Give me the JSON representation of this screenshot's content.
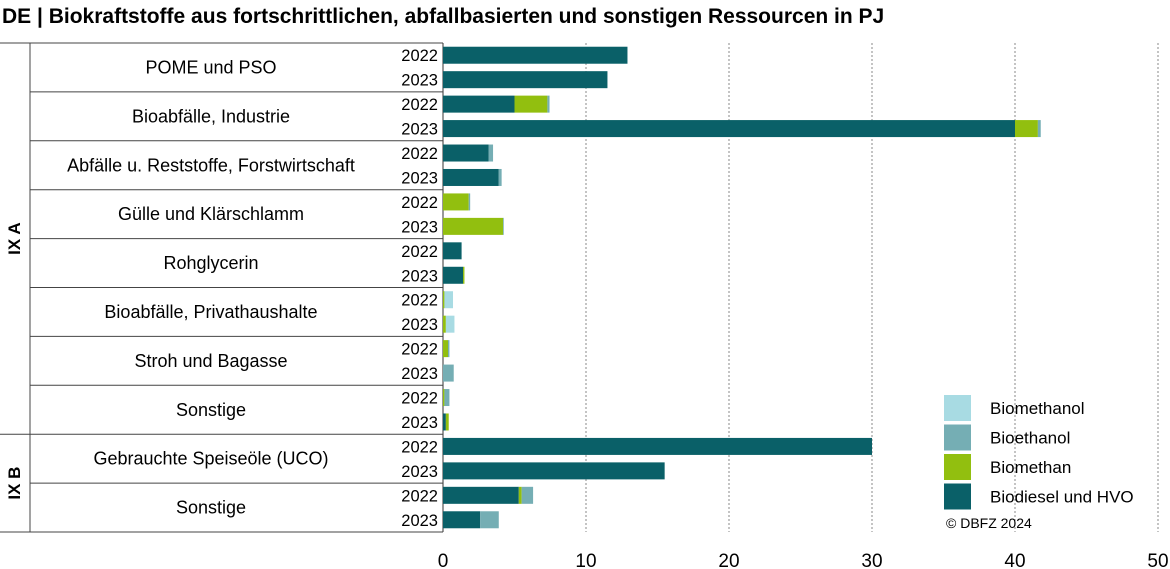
{
  "title": "DE | Biokraftstoffe aus fortschrittlichen, abfallbasierten und sonstigen Ressourcen in PJ",
  "copyright": "© DBFZ 2024",
  "chart_data": {
    "type": "bar",
    "orientation": "horizontal",
    "stacked": true,
    "xlim": [
      0,
      50
    ],
    "x_ticks": [
      0,
      10,
      20,
      30,
      40,
      50
    ],
    "grid": "vertical dotted",
    "legend_position": "bottom-right",
    "groups": [
      {
        "label": "IX A",
        "categories": [
          "POME und PSO",
          "Bioabfälle, Industrie",
          "Abfälle u. Reststoffe, Forstwirtschaft",
          "Gülle und Klärschlamm",
          "Rohglycerin",
          "Bioabfälle, Privathaushalte",
          "Stroh und Bagasse",
          "Sonstige"
        ]
      },
      {
        "label": "IX B",
        "categories": [
          "Gebrauchte Speiseöle (UCO)",
          "Sonstige"
        ]
      }
    ],
    "years": [
      "2022",
      "2023"
    ],
    "series": [
      {
        "name": "Biodiesel und HVO",
        "color": "#0a6068"
      },
      {
        "name": "Biomethan",
        "color": "#92bf0f"
      },
      {
        "name": "Bioethanol",
        "color": "#75aeb4"
      },
      {
        "name": "Biomethanol",
        "color": "#a8dbe3"
      }
    ],
    "rows": [
      {
        "category": "POME und PSO",
        "year": "2022",
        "values": [
          12.9,
          0,
          0,
          0
        ]
      },
      {
        "category": "POME und PSO",
        "year": "2023",
        "values": [
          11.5,
          0,
          0,
          0
        ]
      },
      {
        "category": "Bioabfälle, Industrie",
        "year": "2022",
        "values": [
          5.0,
          2.3,
          0.15,
          0
        ]
      },
      {
        "category": "Bioabfälle, Industrie",
        "year": "2023",
        "values": [
          40.0,
          1.6,
          0.2,
          0
        ]
      },
      {
        "category": "Abfälle u. Reststoffe, Forstwirtschaft",
        "year": "2022",
        "values": [
          3.2,
          0,
          0.3,
          0
        ]
      },
      {
        "category": "Abfälle u. Reststoffe, Forstwirtschaft",
        "year": "2023",
        "values": [
          3.9,
          0,
          0.2,
          0
        ]
      },
      {
        "category": "Gülle und Klärschlamm",
        "year": "2022",
        "values": [
          0,
          1.8,
          0.1,
          0
        ]
      },
      {
        "category": "Gülle und Klärschlamm",
        "year": "2023",
        "values": [
          0,
          4.2,
          0.05,
          0
        ]
      },
      {
        "category": "Rohglycerin",
        "year": "2022",
        "values": [
          1.3,
          0,
          0,
          0
        ]
      },
      {
        "category": "Rohglycerin",
        "year": "2023",
        "values": [
          1.4,
          0.1,
          0,
          0
        ]
      },
      {
        "category": "Bioabfälle, Privathaushalte",
        "year": "2022",
        "values": [
          0,
          0.1,
          0,
          0.6
        ]
      },
      {
        "category": "Bioabfälle, Privathaushalte",
        "year": "2023",
        "values": [
          0,
          0.2,
          0,
          0.6
        ]
      },
      {
        "category": "Stroh und Bagasse",
        "year": "2022",
        "values": [
          0,
          0.35,
          0.1,
          0
        ]
      },
      {
        "category": "Stroh und Bagasse",
        "year": "2023",
        "values": [
          0,
          0,
          0.75,
          0
        ]
      },
      {
        "category": "Sonstige",
        "year": "2022",
        "values": [
          0,
          0.1,
          0.35,
          0
        ]
      },
      {
        "category": "Sonstige",
        "year": "2023",
        "values": [
          0.2,
          0.2,
          0,
          0
        ]
      },
      {
        "category": "Gebrauchte Speiseöle (UCO)",
        "year": "2022",
        "values": [
          30.0,
          0,
          0,
          0
        ]
      },
      {
        "category": "Gebrauchte Speiseöle (UCO)",
        "year": "2023",
        "values": [
          15.5,
          0,
          0,
          0
        ]
      },
      {
        "category": "Sonstige",
        "year": "2022",
        "values": [
          5.3,
          0.2,
          0.8,
          0
        ]
      },
      {
        "category": "Sonstige",
        "year": "2023",
        "values": [
          2.6,
          0,
          1.3,
          0
        ]
      }
    ],
    "legend_entries": [
      "Biomethanol",
      "Bioethanol",
      "Biomethan",
      "Biodiesel und HVO"
    ],
    "legend_colors": [
      "#a8dbe3",
      "#75aeb4",
      "#92bf0f",
      "#0a6068"
    ]
  }
}
